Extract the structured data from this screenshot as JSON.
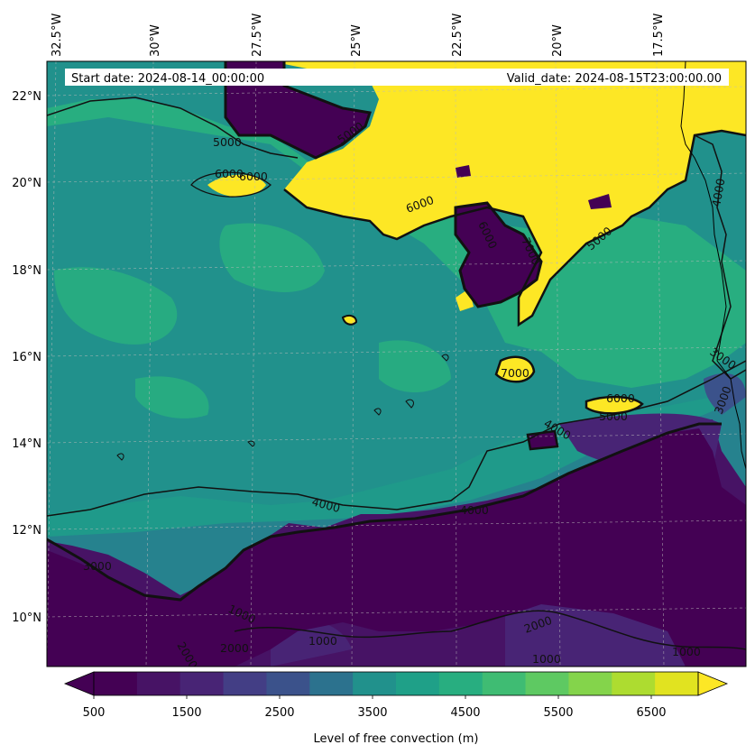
{
  "header": {
    "start_date": "Start date: 2024-08-14_00:00:00",
    "valid_date": "Valid_date: 2024-08-15T23:00:00.00"
  },
  "map": {
    "lon_labels": [
      "32.5°W",
      "30°W",
      "27.5°W",
      "25°W",
      "22.5°W",
      "20°W",
      "17.5°W"
    ],
    "lat_labels": [
      "22°N",
      "20°N",
      "18°N",
      "16°N",
      "14°N",
      "12°N",
      "10°N"
    ],
    "contour_labels": [
      "5000",
      "6000",
      "6000",
      "5000",
      "6000",
      "7000",
      "6000",
      "5000",
      "4000",
      "3000",
      "3000",
      "7000",
      "6000",
      "5000",
      "4000",
      "4000",
      "4000",
      "3000",
      "1000",
      "1000",
      "2000",
      "2000",
      "2000",
      "1000",
      "1000"
    ],
    "colors": {
      "c500": "#440154",
      "c1000": "#471365",
      "c1500": "#482475",
      "c2000": "#433e85",
      "c2500": "#3b528b",
      "c3000": "#2c728e",
      "c3500": "#21918c",
      "c4000": "#1fa088",
      "c4500": "#28ae80",
      "c5000": "#3fbc73",
      "c5500": "#5ec962",
      "c6000": "#84d44b",
      "c6500": "#addc30",
      "c7000": "#fde725"
    }
  },
  "colorbar": {
    "tick_labels": [
      "500",
      "1500",
      "2500",
      "3500",
      "4500",
      "5500",
      "6500"
    ],
    "label": "Level of free convection (m)",
    "colors": [
      "#440154",
      "#471365",
      "#482475",
      "#433e85",
      "#3b528b",
      "#2c728e",
      "#21918c",
      "#1fa088",
      "#28ae80",
      "#3fbc73",
      "#5ec962",
      "#84d44b",
      "#addc30",
      "#e1e320"
    ]
  }
}
